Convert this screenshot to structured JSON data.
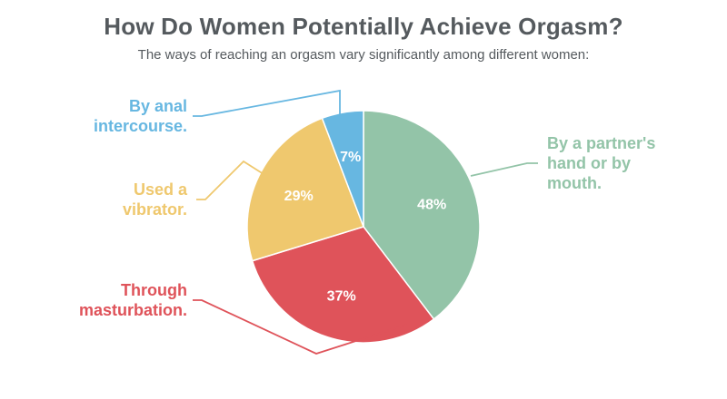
{
  "title": "How Do Women Potentially Achieve Orgasm?",
  "subtitle": "The ways of reaching an orgasm vary significantly among different women:",
  "chart_data": {
    "type": "pie",
    "slices": [
      {
        "label": [
          "By a partner's",
          "hand or by",
          "mouth."
        ],
        "value": 48,
        "display": "48%",
        "color": "#93c4a8"
      },
      {
        "label": [
          "Through",
          "masturbation."
        ],
        "value": 37,
        "display": "37%",
        "color": "#df535a"
      },
      {
        "label": [
          "Used a",
          "vibrator."
        ],
        "value": 29,
        "display": "29%",
        "color": "#efc86e"
      },
      {
        "label": [
          "By anal",
          "intercourse."
        ],
        "value": 7,
        "display": "7%",
        "color": "#67b7e1"
      }
    ]
  }
}
